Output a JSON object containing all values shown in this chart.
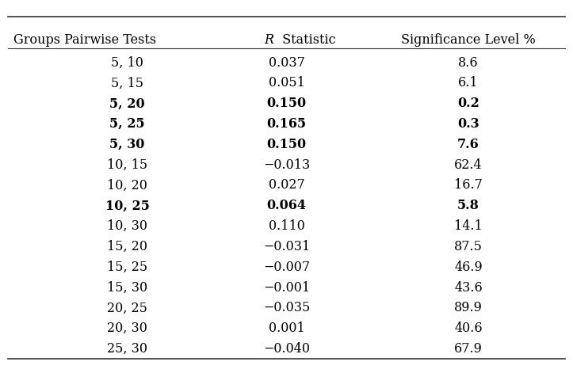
{
  "headers": [
    "Groups Pairwise Tests",
    "R Statistic",
    "Significance Level %"
  ],
  "header_italic": [
    false,
    true,
    false
  ],
  "header_italic_parts": [
    "R"
  ],
  "rows": [
    {
      "group": "5, 10",
      "r": "0.037",
      "sig": "8.6",
      "bold": false
    },
    {
      "group": "5, 15",
      "r": "0.051",
      "sig": "6.1",
      "bold": false
    },
    {
      "group": "5, 20",
      "r": "0.150",
      "sig": "0.2",
      "bold": true
    },
    {
      "group": "5, 25",
      "r": "0.165",
      "sig": "0.3",
      "bold": true
    },
    {
      "group": "5, 30",
      "r": "0.150",
      "sig": "7.6",
      "bold": true
    },
    {
      "group": "10, 15",
      "r": "−0.013",
      "sig": "62.4",
      "bold": false
    },
    {
      "group": "10, 20",
      "r": "0.027",
      "sig": "16.7",
      "bold": false
    },
    {
      "group": "10, 25",
      "r": "0.064",
      "sig": "5.8",
      "bold": true
    },
    {
      "group": "10, 30",
      "r": "0.110",
      "sig": "14.1",
      "bold": false
    },
    {
      "group": "15, 20",
      "r": "−0.031",
      "sig": "87.5",
      "bold": false
    },
    {
      "group": "15, 25",
      "r": "−0.007",
      "sig": "46.9",
      "bold": false
    },
    {
      "group": "15, 30",
      "r": "−0.001",
      "sig": "43.6",
      "bold": false
    },
    {
      "group": "20, 25",
      "r": "−0.035",
      "sig": "89.9",
      "bold": false
    },
    {
      "group": "20, 30",
      "r": "0.001",
      "sig": "40.6",
      "bold": false
    },
    {
      "group": "25, 30",
      "r": "−0.040",
      "sig": "67.9",
      "bold": false
    }
  ],
  "background_color": "#ffffff",
  "text_color": "#000000",
  "line_color": "#333333",
  "font_size": 11.5,
  "header_font_size": 11.5
}
